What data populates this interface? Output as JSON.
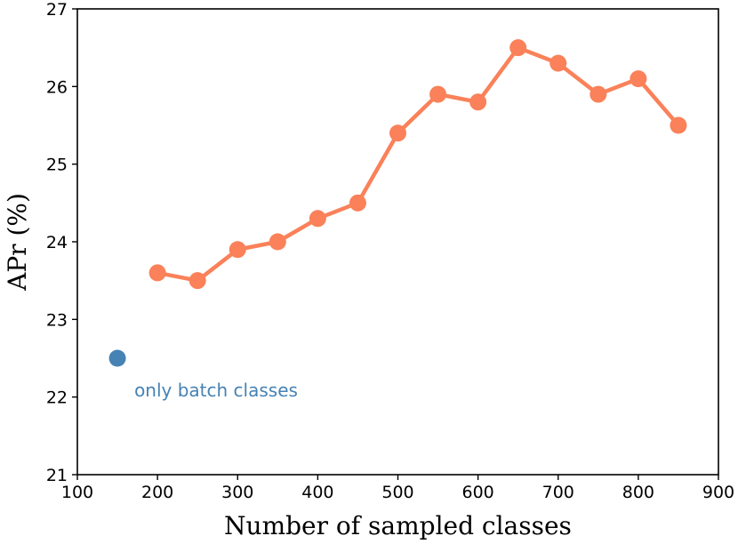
{
  "chart_data": {
    "type": "line",
    "title": "",
    "xlabel": "Number of sampled classes",
    "ylabel": "APr (%)",
    "xlim": [
      100,
      900
    ],
    "ylim": [
      21,
      27
    ],
    "xticks": [
      100,
      200,
      300,
      400,
      500,
      600,
      700,
      800,
      900
    ],
    "yticks": [
      21,
      22,
      23,
      24,
      25,
      26,
      27
    ],
    "xtick_labels": [
      "100",
      "200",
      "300",
      "400",
      "500",
      "600",
      "700",
      "800",
      "900"
    ],
    "ytick_labels": [
      "21",
      "22",
      "23",
      "24",
      "25",
      "26",
      "27"
    ],
    "grid": false,
    "legend": "none",
    "series": [
      {
        "color": "#fa8159",
        "marker": "circle",
        "x": [
          200,
          250,
          300,
          350,
          400,
          450,
          500,
          550,
          600,
          650,
          700,
          750,
          800,
          850
        ],
        "y": [
          23.6,
          23.5,
          23.9,
          24.0,
          24.3,
          24.5,
          25.4,
          25.9,
          25.8,
          26.5,
          26.3,
          25.9,
          26.1,
          25.5
        ]
      }
    ],
    "baseline_point": {
      "x": 150,
      "y": 22.5,
      "color": "#4682b4",
      "label": "only batch classes"
    }
  }
}
